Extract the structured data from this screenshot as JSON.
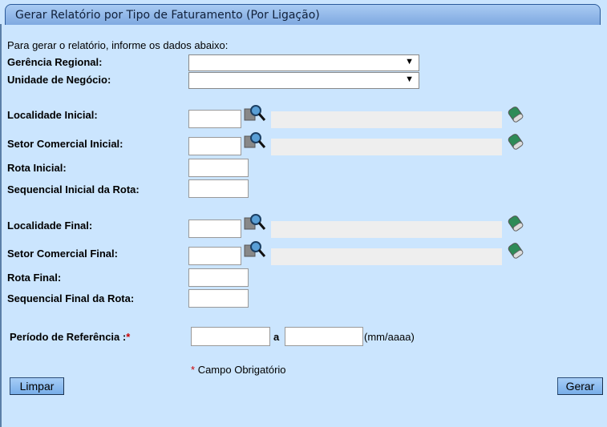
{
  "title": "Gerar Relatório por Tipo de Faturamento (Por Ligação)",
  "intro": "Para gerar o relatório, informe os dados abaixo:",
  "fields": {
    "gerencia": "Gerência Regional:",
    "unidade": "Unidade de Negócio:",
    "loc_ini": "Localidade Inicial:",
    "setor_ini": "Setor Comercial Inicial:",
    "rota_ini": "Rota Inicial:",
    "seq_ini": "Sequencial Inicial da Rota:",
    "loc_fim": "Localidade Final:",
    "setor_fim": "Setor Comercial Final:",
    "rota_fim": "Rota Final:",
    "seq_fim": "Sequencial Final da Rota:",
    "periodo": "Período de Referência :",
    "periodo_sep": "a",
    "periodo_fmt": "(mm/aaaa)"
  },
  "required_mark": "*",
  "required_note": "Campo Obrigatório",
  "buttons": {
    "limpar": "Limpar",
    "gerar": "Gerar"
  },
  "icons": {
    "lookup": "magnifier-icon",
    "clear": "eraser-icon",
    "dropdown": "▼"
  }
}
